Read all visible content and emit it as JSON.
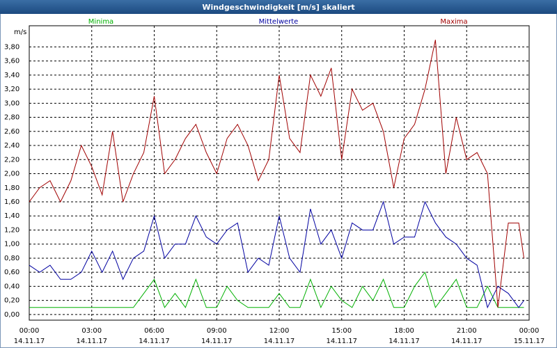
{
  "chart_data": {
    "type": "line",
    "title": "Windgeschwindigkeit [m/s] skaliert",
    "y_label": "m/s",
    "x": [
      0,
      0.5,
      1,
      1.5,
      2,
      2.5,
      3,
      3.5,
      4,
      4.5,
      5,
      5.5,
      6,
      6.5,
      7,
      7.5,
      8,
      8.5,
      9,
      9.5,
      10,
      10.5,
      11,
      11.5,
      12,
      12.5,
      13,
      13.5,
      14,
      14.5,
      15,
      15.5,
      16,
      16.5,
      17,
      17.5,
      18,
      18.5,
      19,
      19.5,
      20,
      20.5,
      21,
      21.5,
      22,
      22.5,
      23,
      23.5,
      23.75
    ],
    "series": [
      {
        "name": "Minima",
        "color": "#00b000",
        "values": [
          0.1,
          0.1,
          0.1,
          0.1,
          0.1,
          0.1,
          0.1,
          0.1,
          0.1,
          0.1,
          0.1,
          0.3,
          0.5,
          0.1,
          0.3,
          0.1,
          0.5,
          0.1,
          0.1,
          0.4,
          0.2,
          0.1,
          0.1,
          0.1,
          0.3,
          0.1,
          0.1,
          0.5,
          0.1,
          0.4,
          0.2,
          0.1,
          0.4,
          0.2,
          0.5,
          0.1,
          0.1,
          0.4,
          0.6,
          0.1,
          0.3,
          0.5,
          0.1,
          0.1,
          0.4,
          0.1,
          0.1,
          0.1,
          0.1
        ]
      },
      {
        "name": "Mittelwerte",
        "color": "#0000a0",
        "values": [
          0.7,
          0.6,
          0.7,
          0.5,
          0.5,
          0.6,
          0.9,
          0.6,
          0.9,
          0.5,
          0.8,
          0.9,
          1.4,
          0.8,
          1.0,
          1.0,
          1.4,
          1.1,
          1.0,
          1.2,
          1.3,
          0.6,
          0.8,
          0.7,
          1.4,
          0.8,
          0.6,
          1.5,
          1.0,
          1.2,
          0.8,
          1.3,
          1.2,
          1.2,
          1.6,
          1.0,
          1.1,
          1.1,
          1.6,
          1.3,
          1.1,
          1.0,
          0.8,
          0.7,
          0.1,
          0.4,
          0.3,
          0.1,
          0.2
        ]
      },
      {
        "name": "Maxima",
        "color": "#a00000",
        "values": [
          1.6,
          1.8,
          1.9,
          1.6,
          1.9,
          2.4,
          2.1,
          1.7,
          2.6,
          1.6,
          2.0,
          2.3,
          3.1,
          2.0,
          2.2,
          2.5,
          2.7,
          2.3,
          2.0,
          2.5,
          2.7,
          2.4,
          1.9,
          2.2,
          3.4,
          2.5,
          2.3,
          3.4,
          3.1,
          3.5,
          2.2,
          3.2,
          2.9,
          3.0,
          2.6,
          1.8,
          2.5,
          2.7,
          3.2,
          3.9,
          2.0,
          2.8,
          2.2,
          2.3,
          2.0,
          0.1,
          1.3,
          1.3,
          0.8
        ]
      }
    ],
    "xlim": [
      0,
      24
    ],
    "xticks": [
      {
        "value": 0,
        "label": "00:00",
        "date": "14.11.17"
      },
      {
        "value": 3,
        "label": "03:00",
        "date": "14.11.17"
      },
      {
        "value": 6,
        "label": "06:00",
        "date": "14.11.17"
      },
      {
        "value": 9,
        "label": "09:00",
        "date": "14.11.17"
      },
      {
        "value": 12,
        "label": "12:00",
        "date": "14.11.17"
      },
      {
        "value": 15,
        "label": "15:00",
        "date": "14.11.17"
      },
      {
        "value": 18,
        "label": "18:00",
        "date": "14.11.17"
      },
      {
        "value": 21,
        "label": "21:00",
        "date": "14.11.17"
      },
      {
        "value": 24,
        "label": "00:00",
        "date": "15.11.17"
      }
    ],
    "ylim": [
      -0.08,
      4.1
    ],
    "yticks": [
      {
        "value": 0,
        "label": "0,00"
      },
      {
        "value": 0.2,
        "label": "0,20"
      },
      {
        "value": 0.4,
        "label": "0,40"
      },
      {
        "value": 0.6,
        "label": "0,60"
      },
      {
        "value": 0.8,
        "label": "0,80"
      },
      {
        "value": 1,
        "label": "1,00"
      },
      {
        "value": 1.2,
        "label": "1,20"
      },
      {
        "value": 1.4,
        "label": "1,40"
      },
      {
        "value": 1.6,
        "label": "1,60"
      },
      {
        "value": 1.8,
        "label": "1,80"
      },
      {
        "value": 2,
        "label": "2,00"
      },
      {
        "value": 2.2,
        "label": "2,20"
      },
      {
        "value": 2.4,
        "label": "2,40"
      },
      {
        "value": 2.6,
        "label": "2,60"
      },
      {
        "value": 2.8,
        "label": "2,80"
      },
      {
        "value": 3,
        "label": "3,00"
      },
      {
        "value": 3.2,
        "label": "3,20"
      },
      {
        "value": 3.4,
        "label": "3,40"
      },
      {
        "value": 3.6,
        "label": "3,60"
      },
      {
        "value": 3.8,
        "label": "3,80"
      }
    ],
    "grid": true
  }
}
